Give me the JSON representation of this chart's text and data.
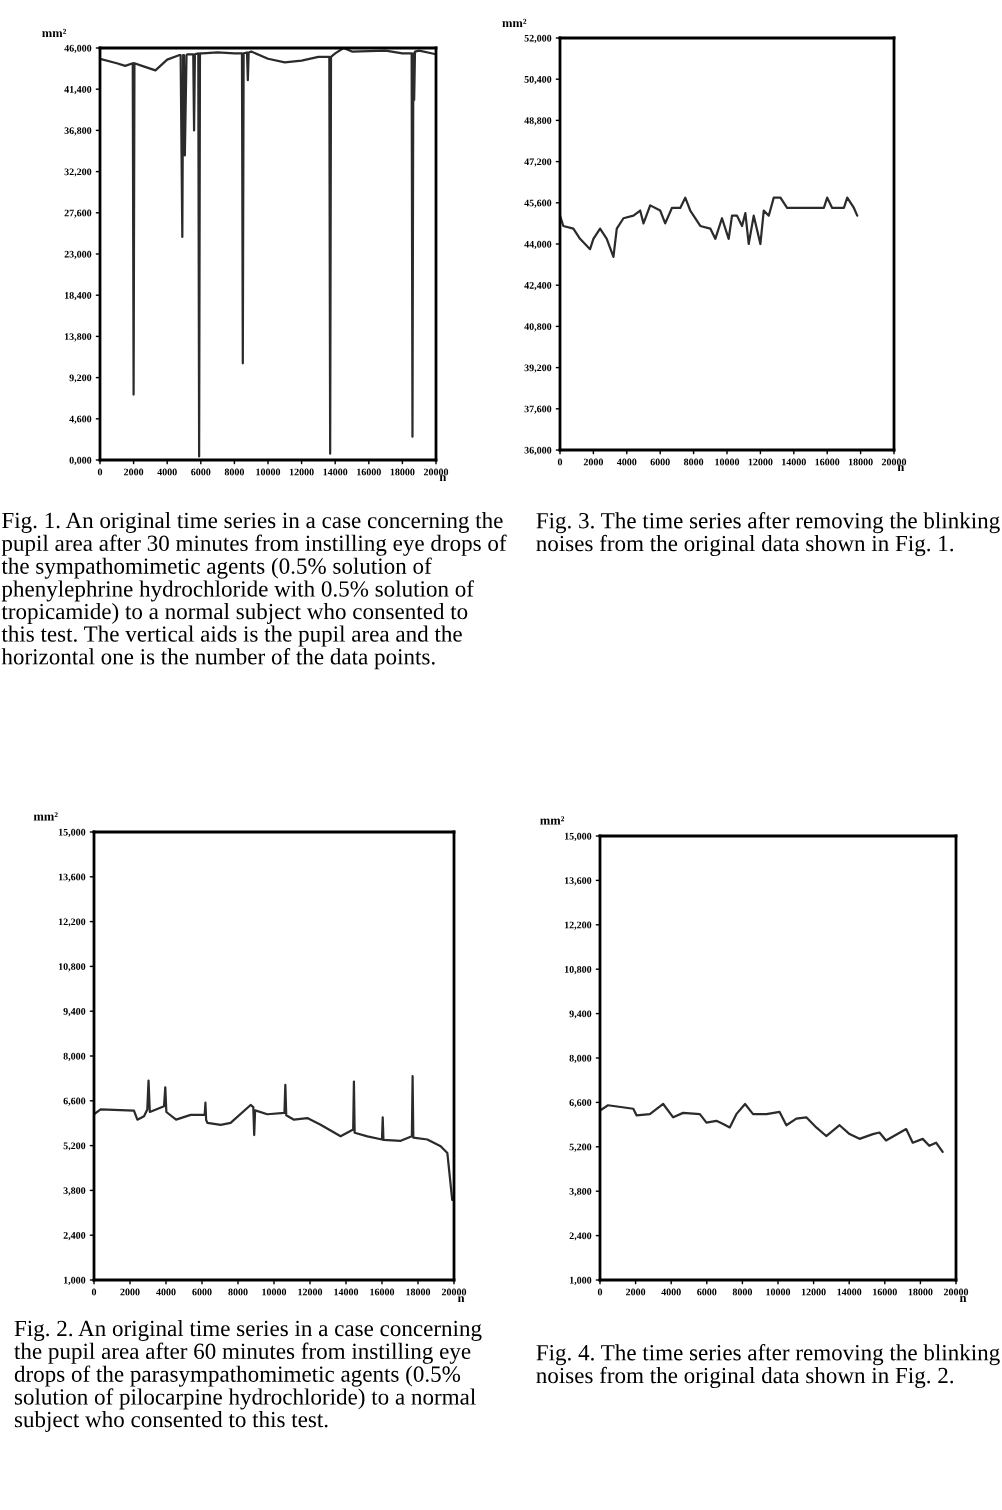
{
  "chart_data": [
    {
      "type": "line",
      "ylabel": "mm²",
      "xlabel": "n",
      "xlim": [
        0,
        20000
      ],
      "xticks": [
        0,
        2000,
        4000,
        6000,
        8000,
        10000,
        12000,
        14000,
        16000,
        18000,
        20000
      ],
      "ylim": [
        0,
        46000
      ],
      "yticks": [
        {
          "value": 0,
          "label": "0,000"
        },
        {
          "value": 4600,
          "label": "4,600"
        },
        {
          "value": 9200,
          "label": "9,200"
        },
        {
          "value": 13800,
          "label": "13,800"
        },
        {
          "value": 18400,
          "label": "18,400"
        },
        {
          "value": 23000,
          "label": "23,000"
        },
        {
          "value": 27600,
          "label": "27,600"
        },
        {
          "value": 32200,
          "label": "32,200"
        },
        {
          "value": 36800,
          "label": "36,800"
        },
        {
          "value": 41400,
          "label": "41,400"
        },
        {
          "value": 46000,
          "label": "46,000"
        }
      ],
      "x": [
        0,
        1000,
        1500,
        1950,
        2000,
        2050,
        2500,
        3300,
        4000,
        4700,
        4800,
        4900,
        4950,
        5000,
        5050,
        5150,
        5200,
        5550,
        5600,
        5650,
        5850,
        5900,
        5950,
        6100,
        7000,
        8000,
        8450,
        8500,
        8550,
        8750,
        8800,
        8850,
        9000,
        10000,
        11000,
        12000,
        13000,
        13650,
        13700,
        13750,
        14000,
        14500,
        15000,
        17000,
        18000,
        18550,
        18600,
        18650,
        18700,
        18750,
        19000,
        20000
      ],
      "series": [
        {
          "color": "#2b2b2b",
          "values": [
            44800,
            44300,
            44000,
            44300,
            7300,
            44300,
            44000,
            43500,
            44700,
            45200,
            45200,
            24900,
            45200,
            45200,
            34000,
            45200,
            45300,
            45300,
            36800,
            45300,
            45400,
            400,
            45400,
            45400,
            45500,
            45400,
            45400,
            10800,
            45400,
            45500,
            42400,
            45500,
            45600,
            44800,
            44400,
            44600,
            45000,
            45000,
            700,
            45000,
            45400,
            46000,
            45600,
            45700,
            45400,
            45400,
            2600,
            45400,
            40200,
            45600,
            45700,
            45300
          ]
        }
      ],
      "annotations": [
        "Fig. 1. An original time series in a case concerning the pupil area after 30 minutes from instilling eye drops of the sympathomimetic agents (0.5% solution of phenylephrine hydrochloride with 0.5% solution of tropicamide) to a normal subject who consented to this test. The vertical aids is the pupil area and the horizontal one is the number of the data points."
      ]
    },
    {
      "type": "line",
      "ylabel": "mm²",
      "xlabel": "n",
      "xlim": [
        0,
        20000
      ],
      "xticks": [
        0,
        2000,
        4000,
        6000,
        8000,
        10000,
        12000,
        14000,
        16000,
        18000,
        20000
      ],
      "ylim": [
        36000,
        52000
      ],
      "yticks": [
        {
          "value": 36000,
          "label": "36,000"
        },
        {
          "value": 37600,
          "label": "37,600"
        },
        {
          "value": 39200,
          "label": "39,200"
        },
        {
          "value": 40800,
          "label": "40,800"
        },
        {
          "value": 42400,
          "label": "42,400"
        },
        {
          "value": 44000,
          "label": "44,000"
        },
        {
          "value": 45600,
          "label": "45,600"
        },
        {
          "value": 47200,
          "label": "47,200"
        },
        {
          "value": 48800,
          "label": "48,800"
        },
        {
          "value": 50400,
          "label": "50,400"
        },
        {
          "value": 52000,
          "label": "52,000"
        }
      ],
      "x": [
        0,
        200,
        800,
        1200,
        1800,
        2000,
        2400,
        2800,
        3200,
        3400,
        3800,
        4400,
        4800,
        5000,
        5400,
        6000,
        6300,
        6700,
        7200,
        7500,
        7800,
        8400,
        9000,
        9300,
        9700,
        10100,
        10300,
        10600,
        10900,
        11100,
        11300,
        11600,
        12000,
        12200,
        12500,
        12800,
        13200,
        13600,
        15200,
        15800,
        16000,
        16300,
        17000,
        17200,
        17600,
        17800
      ],
      "series": [
        {
          "color": "#2b2b2b",
          "values": [
            45100,
            44700,
            44600,
            44200,
            43800,
            44200,
            44600,
            44200,
            43500,
            44600,
            45000,
            45100,
            45300,
            44800,
            45500,
            45300,
            44800,
            45400,
            45400,
            45800,
            45300,
            44700,
            44600,
            44200,
            45000,
            44200,
            45100,
            45100,
            44700,
            45200,
            44000,
            45100,
            44000,
            45300,
            45100,
            45800,
            45800,
            45400,
            45400,
            45400,
            45800,
            45400,
            45400,
            45800,
            45400,
            45100
          ]
        }
      ],
      "annotations": [
        "Fig. 3. The time series after removing the blinking noises from the original data shown in Fig. 1."
      ]
    },
    {
      "type": "line",
      "ylabel": "mm²",
      "xlabel": "n",
      "xlim": [
        0,
        20000
      ],
      "xticks": [
        0,
        2000,
        4000,
        6000,
        8000,
        10000,
        12000,
        14000,
        16000,
        18000,
        20000
      ],
      "ylim": [
        1000,
        15000
      ],
      "yticks": [
        {
          "value": 1000,
          "label": "1,000"
        },
        {
          "value": 2400,
          "label": "2,400"
        },
        {
          "value": 3800,
          "label": "3,800"
        },
        {
          "value": 5200,
          "label": "5,200"
        },
        {
          "value": 6600,
          "label": "6,600"
        },
        {
          "value": 8000,
          "label": "8,000"
        },
        {
          "value": 9400,
          "label": "9,400"
        },
        {
          "value": 10800,
          "label": "10,800"
        },
        {
          "value": 12200,
          "label": "12,200"
        },
        {
          "value": 13600,
          "label": "13,600"
        },
        {
          "value": 15000,
          "label": "15,000"
        }
      ],
      "x": [
        0,
        370,
        2220,
        2410,
        2780,
        2960,
        3030,
        3100,
        3890,
        3960,
        4020,
        4560,
        5370,
        6150,
        6190,
        6230,
        6300,
        7040,
        7590,
        8700,
        8850,
        8900,
        8950,
        9630,
        10580,
        10630,
        10680,
        11110,
        11850,
        12590,
        13700,
        14400,
        14440,
        14480,
        15190,
        16000,
        16040,
        16080,
        17040,
        17660,
        17700,
        17740,
        18520,
        19260,
        19630,
        19900
      ],
      "series": [
        {
          "color": "#2b2b2b",
          "values": [
            6180,
            6330,
            6290,
            6010,
            6120,
            6330,
            7230,
            6250,
            6430,
            7020,
            6250,
            6010,
            6160,
            6160,
            6540,
            6000,
            5910,
            5850,
            5910,
            6470,
            6400,
            5530,
            6300,
            6180,
            6220,
            7100,
            6150,
            6010,
            6060,
            5850,
            5490,
            5700,
            7200,
            5600,
            5490,
            5390,
            6080,
            5380,
            5350,
            5490,
            7370,
            5450,
            5390,
            5180,
            4970,
            3500
          ]
        }
      ],
      "annotations": [
        "Fig. 2. An original time series in a case concerning the pupil area after 60 minutes from instilling eye drops of the parasympathomimetic agents (0.5% solution of pilocarpine hydrochloride) to a normal subject who consented to this test."
      ]
    },
    {
      "type": "line",
      "ylabel": "mm²",
      "xlabel": "n",
      "xlim": [
        0,
        20000
      ],
      "xticks": [
        0,
        2000,
        4000,
        6000,
        8000,
        10000,
        12000,
        14000,
        16000,
        18000,
        20000
      ],
      "ylim": [
        1000,
        15000
      ],
      "yticks": [
        {
          "value": 1000,
          "label": "1,000"
        },
        {
          "value": 2400,
          "label": "2,400"
        },
        {
          "value": 3800,
          "label": "3,800"
        },
        {
          "value": 5200,
          "label": "5,200"
        },
        {
          "value": 6600,
          "label": "6,600"
        },
        {
          "value": 8000,
          "label": "8,000"
        },
        {
          "value": 9400,
          "label": "9,400"
        },
        {
          "value": 10800,
          "label": "10,800"
        },
        {
          "value": 12200,
          "label": "12,200"
        },
        {
          "value": 13600,
          "label": "13,600"
        },
        {
          "value": 15000,
          "label": "15,000"
        }
      ],
      "x": [
        0,
        450,
        1870,
        2060,
        2800,
        3550,
        4110,
        4670,
        5610,
        5980,
        6540,
        6920,
        7290,
        7660,
        8150,
        8600,
        9350,
        10090,
        10470,
        11030,
        11590,
        12150,
        12710,
        13460,
        14020,
        14580,
        15330,
        15700,
        16070,
        17200,
        17570,
        18130,
        18500,
        18880,
        19250
      ],
      "series": [
        {
          "color": "#2b2b2b",
          "values": [
            6340,
            6510,
            6400,
            6190,
            6230,
            6550,
            6130,
            6270,
            6230,
            5960,
            6020,
            5920,
            5810,
            6230,
            6550,
            6230,
            6230,
            6300,
            5880,
            6090,
            6130,
            5810,
            5540,
            5880,
            5600,
            5450,
            5600,
            5650,
            5400,
            5760,
            5330,
            5450,
            5230,
            5330,
            5040
          ]
        }
      ],
      "annotations": [
        "Fig. 4. The time series after removing the blinking noises from the original data shown in Fig. 2."
      ]
    }
  ]
}
